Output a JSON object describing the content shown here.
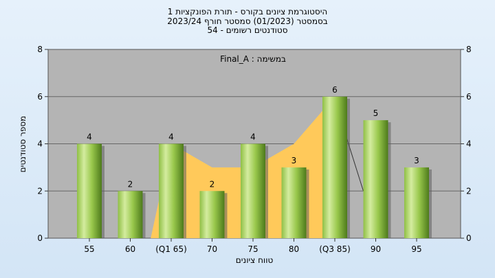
{
  "title": {
    "line1": "היסטוגרמת ציונים בקורס - תורת הפונקציות 1",
    "line2": "בסמסטר  (01/2023)  סמסטר חורף  2023/24",
    "line3": "סטודנטים רשומים - 54"
  },
  "chart_data": {
    "type": "bar",
    "categories": [
      "55",
      "60",
      "(Q1 65)",
      "70",
      "75",
      "80",
      "(Q3 85)",
      "90",
      "95"
    ],
    "values": [
      4,
      2,
      4,
      2,
      4,
      3,
      6,
      5,
      3
    ],
    "data_labels": [
      "4",
      "2",
      "4",
      "2",
      "4",
      "3",
      "6",
      "5",
      "3"
    ],
    "annotation": "במשימה : Final_A",
    "xlabel": "טווח ציונים",
    "ylabel": "מספר סטודנטים",
    "ylim": [
      0,
      8
    ],
    "yticks": [
      "0",
      "2",
      "4",
      "6",
      "8"
    ],
    "grid": true,
    "quartile_band": {
      "from_category": "(Q1 65)",
      "to_category": "(Q3 85)",
      "upper": [
        4,
        3,
        3,
        4,
        6
      ],
      "lower": [
        0,
        0,
        0,
        0,
        0
      ]
    },
    "colors": {
      "plot_bg": "#b4b4b4",
      "bar_light": "#d2e9a3",
      "bar_mid": "#9ccb4d",
      "bar_dark": "#4f7c1c",
      "band": "#ffc95a"
    }
  }
}
